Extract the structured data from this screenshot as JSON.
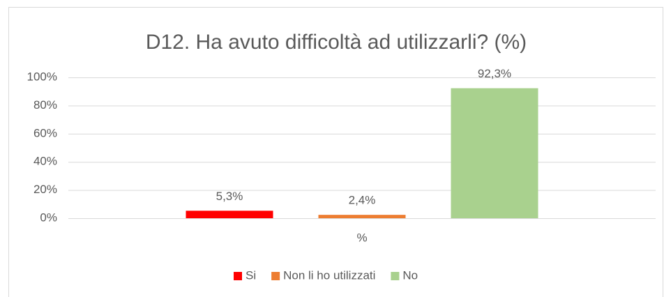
{
  "chart_data": {
    "type": "bar",
    "title": "D12. Ha avuto difficoltà ad utilizzarli? (%)",
    "categories": [
      "%"
    ],
    "series": [
      {
        "name": "Si",
        "color": "#ff0000",
        "values": [
          5.3
        ],
        "value_labels": [
          "5,3%"
        ]
      },
      {
        "name": "Non li ho utilizzati",
        "color": "#ed7d31",
        "values": [
          2.4
        ],
        "value_labels": [
          "2,4%"
        ]
      },
      {
        "name": "No",
        "color": "#a9d18e",
        "values": [
          92.3
        ],
        "value_labels": [
          "92,3%"
        ]
      }
    ],
    "ylim": [
      0,
      100
    ],
    "yticks": [
      {
        "value": 0,
        "label": "0%"
      },
      {
        "value": 20,
        "label": "20%"
      },
      {
        "value": 40,
        "label": "40%"
      },
      {
        "value": 60,
        "label": "60%"
      },
      {
        "value": 80,
        "label": "80%"
      },
      {
        "value": 100,
        "label": "100%"
      }
    ],
    "grid": true,
    "legend": "bottom"
  }
}
